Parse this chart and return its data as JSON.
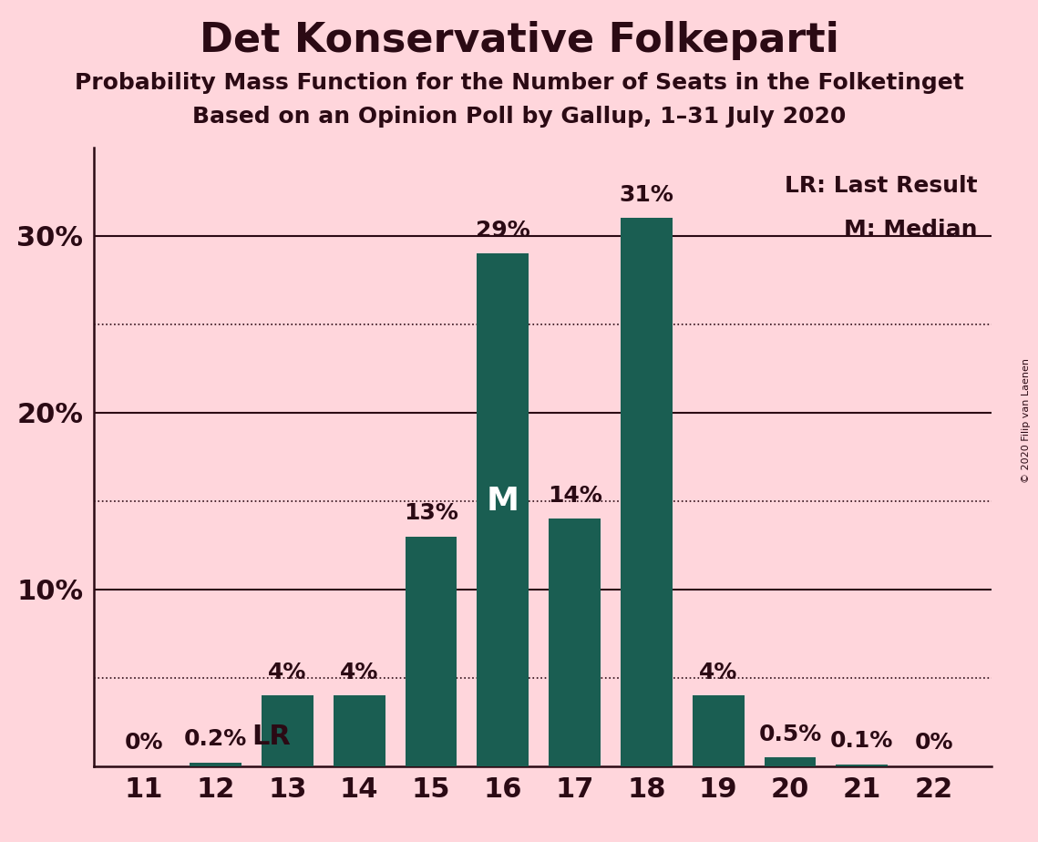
{
  "title": "Det Konservative Folkeparti",
  "subtitle1": "Probability Mass Function for the Number of Seats in the Folketinget",
  "subtitle2": "Based on an Opinion Poll by Gallup, 1–31 July 2020",
  "copyright": "© 2020 Filip van Laenen",
  "seats": [
    11,
    12,
    13,
    14,
    15,
    16,
    17,
    18,
    19,
    20,
    21,
    22
  ],
  "values": [
    0.0,
    0.2,
    4.0,
    4.0,
    13.0,
    29.0,
    14.0,
    31.0,
    4.0,
    0.5,
    0.1,
    0.0
  ],
  "labels": [
    "0%",
    "0.2%",
    "4%",
    "4%",
    "13%",
    "29%",
    "14%",
    "31%",
    "4%",
    "0.5%",
    "0.1%",
    "0%"
  ],
  "bar_color": "#1a5e52",
  "background_color": "#ffd6dc",
  "text_color": "#2b0a14",
  "yticks": [
    10,
    20,
    30
  ],
  "dotted_lines": [
    5,
    15,
    25
  ],
  "solid_lines": [
    10,
    20,
    30
  ],
  "ylim": [
    0,
    35
  ],
  "lr_seat": 12,
  "median_seat": 16,
  "legend_text1": "LR: Last Result",
  "legend_text2": "M: Median",
  "title_fontsize": 32,
  "subtitle_fontsize": 18,
  "axis_label_fontsize": 22,
  "bar_label_fontsize": 18,
  "marker_fontsize": 22
}
